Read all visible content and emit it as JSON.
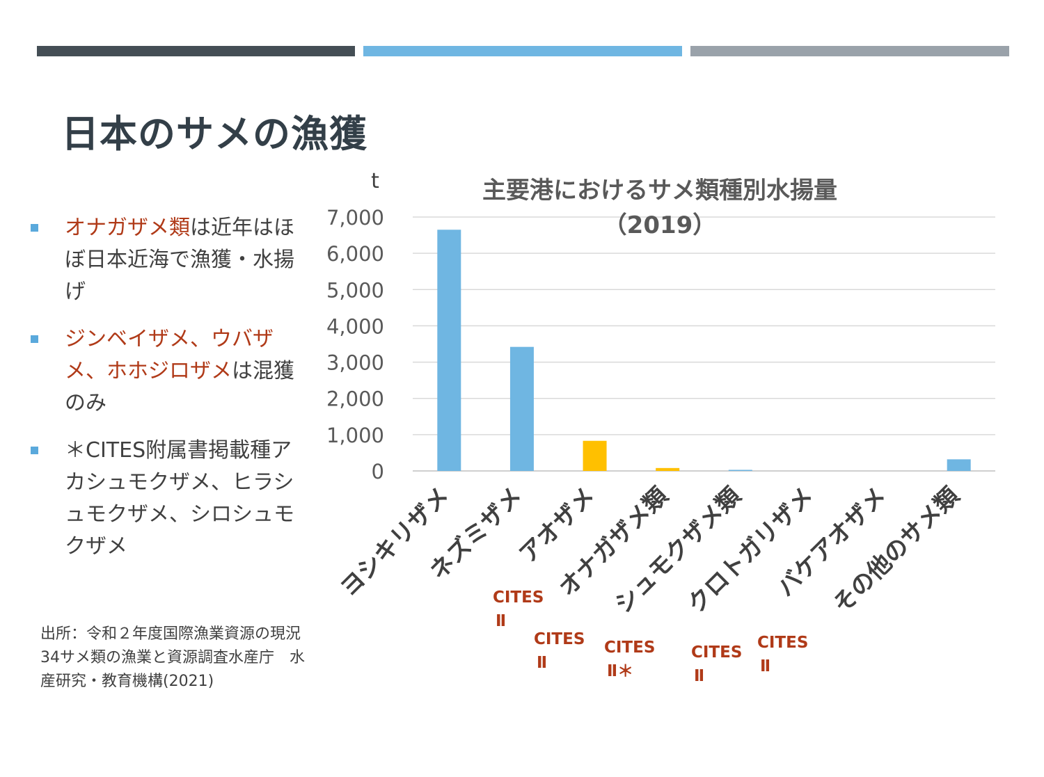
{
  "colors": {
    "bar_dark": "#444e55",
    "bar_blue": "#6fb6e2",
    "bar_grey": "#9aa2aa",
    "series_blue": "#6fb6e2",
    "series_yellow": "#ffc000",
    "accent_red": "#b03a18",
    "bullet": "#5aa9dc"
  },
  "slide": {
    "title": "日本のサメの漁獲"
  },
  "bullets": [
    {
      "highlight": "オナガザメ類",
      "text": "は近年はほぼ日本近海で漁獲・水揚げ"
    },
    {
      "highlight": "ジンベイザメ、ウバザメ、ホホジロザメ",
      "text": "は混獲のみ"
    },
    {
      "highlight": "",
      "text": "＊CITES附属書掲載種アカシュモクザメ、ヒラシュモクザメ、シロシュモクザメ"
    }
  ],
  "source_note": "出所：令和２年度国際漁業資源の現況34サメ類の漁業と資源調査水産庁　水産研究・教育機構(2021)",
  "chart_data": {
    "type": "bar",
    "title": "主要港におけるサメ類種別水揚量",
    "subtitle": "（2019）",
    "ylabel": "t",
    "ylim": [
      0,
      7000
    ],
    "yticks": [
      "0",
      "1,000",
      "2,000",
      "3,000",
      "4,000",
      "5,000",
      "6,000",
      "7,000"
    ],
    "grid": true,
    "categories": [
      "ヨシキリザメ",
      "ネズミザメ",
      "アオザメ",
      "オナガザメ類",
      "シュモクザメ類",
      "クロトガリザメ",
      "バケアオザメ",
      "その他のサメ類"
    ],
    "values": [
      6650,
      3420,
      830,
      80,
      30,
      0,
      0,
      320
    ],
    "bar_colors": [
      "#6fb6e2",
      "#6fb6e2",
      "#ffc000",
      "#ffc000",
      "#6fb6e2",
      "#6fb6e2",
      "#6fb6e2",
      "#6fb6e2"
    ],
    "annotations": [
      {
        "category": "アオザメ",
        "line1": "CITES",
        "line2": "Ⅱ"
      },
      {
        "category": "オナガザメ類",
        "line1": "CITES",
        "line2": "Ⅱ"
      },
      {
        "category": "シュモクザメ類",
        "line1": "CITES",
        "line2": "Ⅱ＊"
      },
      {
        "category": "クロトガリザメ",
        "line1": "CITES",
        "line2": "Ⅱ"
      },
      {
        "category": "バケアオザメ",
        "line1": "CITES",
        "line2": "Ⅱ"
      }
    ]
  }
}
